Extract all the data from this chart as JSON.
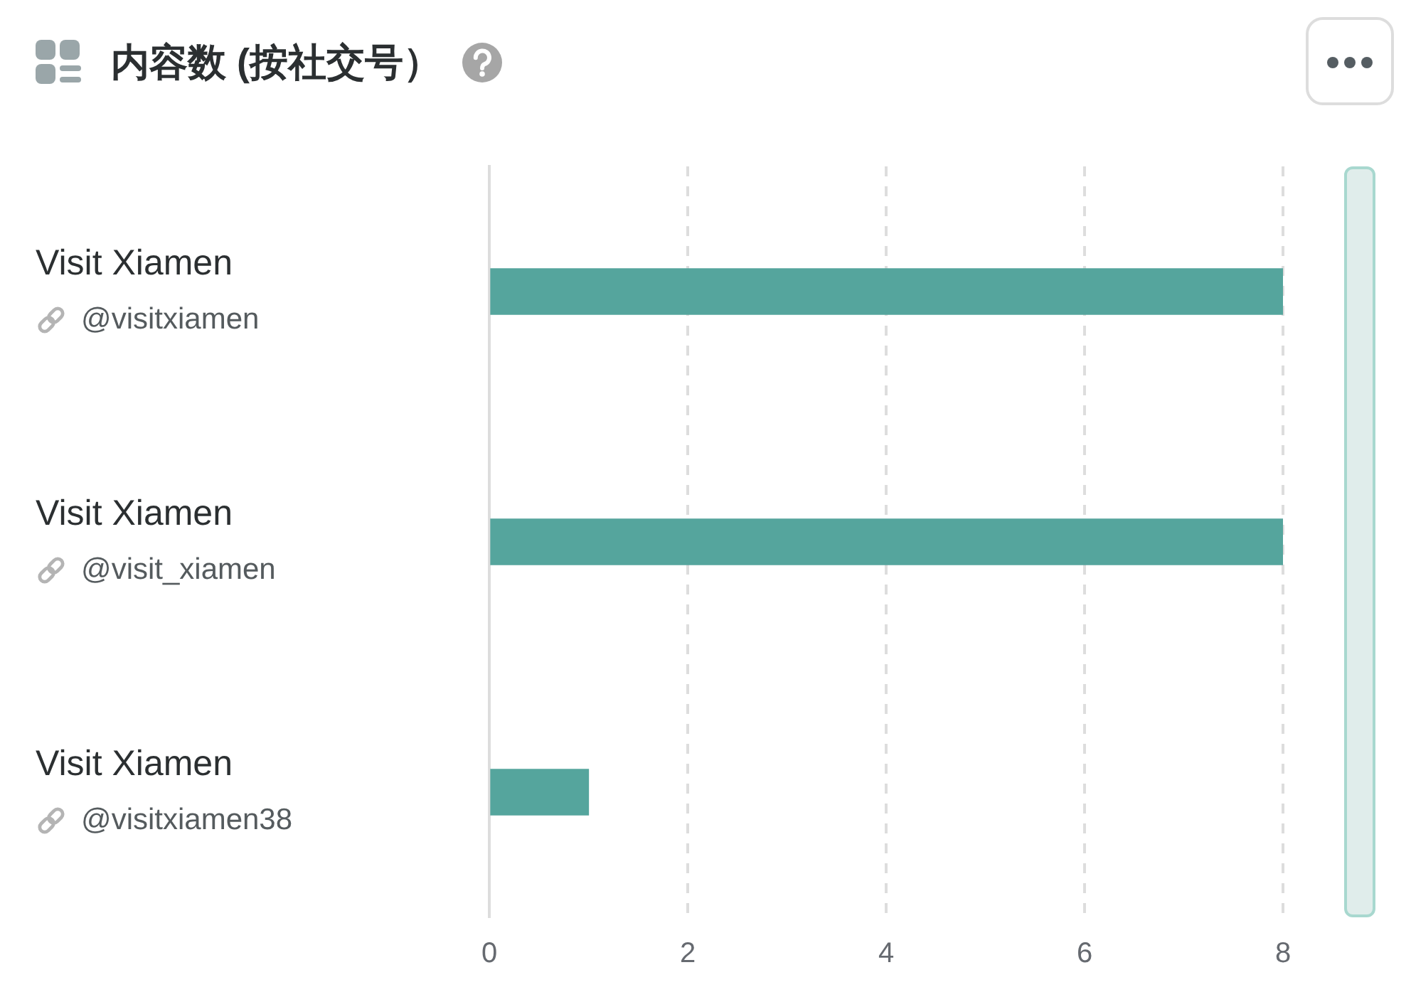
{
  "chart_data": {
    "type": "bar",
    "title": "内容数 (按社交号）",
    "categories": [
      "Visit Xiamen\n@visitxiamen",
      "Visit Xiamen\n@visit_xiamen",
      "Visit Xiamen\n@visitxiamen38"
    ],
    "values": [
      8,
      8,
      1
    ],
    "color": "#55a59d",
    "orientation": "horizontal",
    "xlim": [
      0,
      8
    ],
    "xticks": [
      0,
      2,
      4,
      6,
      8
    ],
    "grid": "x",
    "legend": false
  }
}
